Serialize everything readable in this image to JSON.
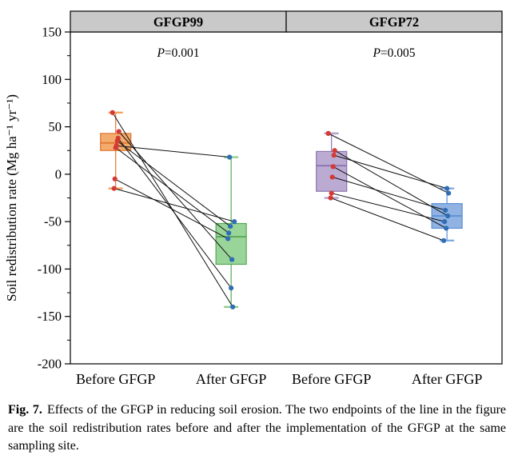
{
  "chart_data": {
    "type": "boxplot",
    "ylabel": "Soil redistribution rate (Mg ha⁻¹ yr⁻¹)",
    "ylim": [
      -200,
      150
    ],
    "yticks": [
      150,
      100,
      50,
      0,
      -50,
      -100,
      -150,
      -200
    ],
    "header_fill": "#c9c9c9",
    "panels": [
      {
        "title": "GFGP99",
        "p_label": "P=0.001",
        "groups": [
          {
            "label": "Before GFGP",
            "box": {
              "q1": 25,
              "median": 33,
              "q3": 43,
              "whisker_low": -15,
              "whisker_high": 65
            },
            "box_color": "#f2a25e",
            "box_edge": "#e0762f",
            "point_color": "#d43a34"
          },
          {
            "label": "After GFGP",
            "box": {
              "q1": -95,
              "median": -66,
              "q3": -52,
              "whisker_low": -140,
              "whisker_high": 18
            },
            "box_color": "#8ecf8e",
            "box_edge": "#55a855",
            "point_color": "#2f6db5"
          }
        ],
        "pairs": [
          [
            65,
            -140
          ],
          [
            45,
            -90
          ],
          [
            38,
            -120
          ],
          [
            35,
            -55
          ],
          [
            30,
            18
          ],
          [
            28,
            -62
          ],
          [
            -5,
            -68
          ],
          [
            -15,
            -50
          ]
        ]
      },
      {
        "title": "GFGP72",
        "p_label": "P=0.005",
        "groups": [
          {
            "label": "Before GFGP",
            "box": {
              "q1": -18,
              "median": 9,
              "q3": 24,
              "whisker_low": -25,
              "whisker_high": 43
            },
            "box_color": "#b4a2cd",
            "box_edge": "#8c74b0",
            "point_color": "#d43a34"
          },
          {
            "label": "After GFGP",
            "box": {
              "q1": -57,
              "median": -44,
              "q3": -31,
              "whisker_low": -70,
              "whisker_high": -15
            },
            "box_color": "#84abe0",
            "box_edge": "#5b8fd4",
            "point_color": "#2f6db5"
          }
        ],
        "pairs": [
          [
            43,
            -20
          ],
          [
            25,
            -44
          ],
          [
            20,
            -15
          ],
          [
            8,
            -57
          ],
          [
            -3,
            -38
          ],
          [
            -20,
            -50
          ],
          [
            -25,
            -70
          ]
        ]
      }
    ]
  },
  "caption": {
    "label": "Fig. 7.",
    "text": "Effects of the GFGP in reducing soil erosion. The two endpoints of the line in the figure are the soil redistribution rates before and after the implementation of the GFGP at the same sampling site."
  }
}
